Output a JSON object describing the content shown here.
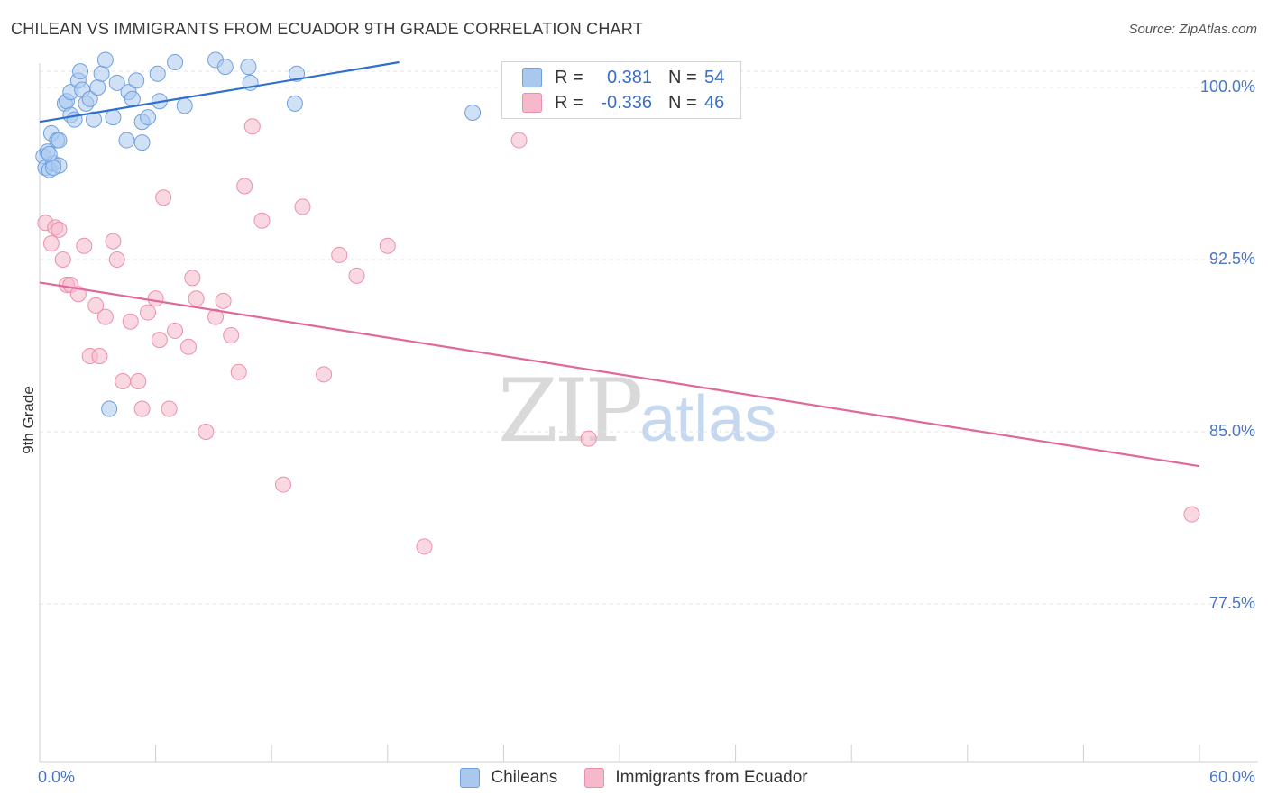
{
  "header": {
    "title": "CHILEAN VS IMMIGRANTS FROM ECUADOR 9TH GRADE CORRELATION CHART",
    "source": "Source: ZipAtlas.com"
  },
  "watermark": {
    "zip": "ZIP",
    "atlas": "atlas"
  },
  "legend": {
    "rows": [
      {
        "r_label": "R =",
        "r_value": "0.381",
        "n_label": "N =",
        "n_value": "54",
        "color": "#aac8ee"
      },
      {
        "r_label": "R =",
        "r_value": "-0.336",
        "n_label": "N =",
        "n_value": "46",
        "color": "#f6b8cb"
      }
    ]
  },
  "bottom_legend": {
    "items": [
      {
        "label": "Chileans",
        "color": "#aac8ee"
      },
      {
        "label": "Immigrants from Ecuador",
        "color": "#f6b8cb"
      }
    ]
  },
  "axes": {
    "ylabel": "9th Grade",
    "y_ticks": [
      "100.0%",
      "92.5%",
      "85.0%",
      "77.5%"
    ],
    "x_ticks": [
      "0.0%",
      "60.0%"
    ]
  },
  "chart_data": {
    "type": "scatter",
    "title": "CHILEAN VS IMMIGRANTS FROM ECUADOR 9TH GRADE CORRELATION CHART",
    "xlabel": "",
    "ylabel": "9th Grade",
    "xlim": [
      0,
      60
    ],
    "ylim": [
      70.5,
      101.2
    ],
    "y_tick_values": [
      100.0,
      92.5,
      85.0,
      77.5
    ],
    "grid": true,
    "legend_position": "top-center",
    "series": [
      {
        "name": "Chileans",
        "color": "#6f9fe0",
        "fill": "#aac8ee",
        "trend": {
          "x0": 0.0,
          "y0": 98.5,
          "x1": 18.6,
          "y1": 101.1,
          "color": "#2f6fce"
        },
        "points": [
          [
            0.2,
            97.0
          ],
          [
            0.3,
            96.5
          ],
          [
            0.5,
            96.4
          ],
          [
            0.6,
            98.0
          ],
          [
            0.7,
            96.7
          ],
          [
            0.9,
            97.7
          ],
          [
            1.0,
            97.7
          ],
          [
            1.0,
            96.6
          ],
          [
            1.3,
            99.3
          ],
          [
            1.4,
            99.4
          ],
          [
            1.6,
            98.8
          ],
          [
            1.6,
            99.8
          ],
          [
            1.8,
            98.6
          ],
          [
            2.0,
            100.3
          ],
          [
            2.1,
            100.7
          ],
          [
            2.2,
            99.9
          ],
          [
            2.4,
            99.3
          ],
          [
            2.6,
            99.5
          ],
          [
            2.8,
            98.6
          ],
          [
            3.0,
            100.0
          ],
          [
            3.2,
            100.6
          ],
          [
            3.4,
            101.2
          ],
          [
            3.5,
            101.3
          ],
          [
            3.8,
            98.7
          ],
          [
            4.0,
            100.2
          ],
          [
            4.3,
            101.3
          ],
          [
            4.5,
            97.7
          ],
          [
            4.6,
            99.8
          ],
          [
            4.8,
            99.5
          ],
          [
            5.0,
            100.3
          ],
          [
            5.3,
            97.6
          ],
          [
            5.3,
            98.5
          ],
          [
            5.6,
            98.7
          ],
          [
            6.1,
            100.6
          ],
          [
            6.2,
            99.4
          ],
          [
            6.7,
            101.8
          ],
          [
            7.0,
            101.1
          ],
          [
            7.5,
            99.2
          ],
          [
            8.1,
            101.8
          ],
          [
            9.1,
            101.2
          ],
          [
            9.6,
            100.9
          ],
          [
            10.1,
            101.6
          ],
          [
            10.8,
            100.9
          ],
          [
            10.9,
            100.2
          ],
          [
            12.3,
            101.4
          ],
          [
            13.2,
            99.3
          ],
          [
            13.3,
            100.6
          ],
          [
            14.3,
            101.8
          ],
          [
            15.0,
            101.8
          ],
          [
            22.4,
            98.9
          ],
          [
            3.6,
            86.0
          ],
          [
            0.4,
            97.2
          ],
          [
            0.5,
            97.1
          ],
          [
            0.7,
            96.5
          ]
        ]
      },
      {
        "name": "Immigrants from Ecuador",
        "color": "#ec8fae",
        "fill": "#f6b8cb",
        "trend": {
          "x0": 0.0,
          "y0": 91.5,
          "x1": 60.0,
          "y1": 83.5,
          "color": "#e0699a"
        },
        "points": [
          [
            0.3,
            94.1
          ],
          [
            0.8,
            93.9
          ],
          [
            1.2,
            92.5
          ],
          [
            1.4,
            91.4
          ],
          [
            1.6,
            91.4
          ],
          [
            2.0,
            91.0
          ],
          [
            2.3,
            93.1
          ],
          [
            2.6,
            88.3
          ],
          [
            2.9,
            90.5
          ],
          [
            3.1,
            88.3
          ],
          [
            3.4,
            90.0
          ],
          [
            3.8,
            93.3
          ],
          [
            4.0,
            92.5
          ],
          [
            4.3,
            87.2
          ],
          [
            4.7,
            89.8
          ],
          [
            5.1,
            87.2
          ],
          [
            5.3,
            86.0
          ],
          [
            5.6,
            90.2
          ],
          [
            6.0,
            90.8
          ],
          [
            6.2,
            89.0
          ],
          [
            6.4,
            95.2
          ],
          [
            6.7,
            86.0
          ],
          [
            7.0,
            89.4
          ],
          [
            7.7,
            88.7
          ],
          [
            7.9,
            91.7
          ],
          [
            8.1,
            90.8
          ],
          [
            8.6,
            85.0
          ],
          [
            9.1,
            90.0
          ],
          [
            9.5,
            90.7
          ],
          [
            9.9,
            89.2
          ],
          [
            10.3,
            87.6
          ],
          [
            10.6,
            95.7
          ],
          [
            11.0,
            98.3
          ],
          [
            11.5,
            94.2
          ],
          [
            12.6,
            82.7
          ],
          [
            13.6,
            94.8
          ],
          [
            14.7,
            87.5
          ],
          [
            15.5,
            92.7
          ],
          [
            16.4,
            91.8
          ],
          [
            18.0,
            93.1
          ],
          [
            19.9,
            80.0
          ],
          [
            24.8,
            97.7
          ],
          [
            28.4,
            84.7
          ],
          [
            59.6,
            81.4
          ],
          [
            0.6,
            93.2
          ],
          [
            1.0,
            93.8
          ]
        ]
      }
    ]
  }
}
